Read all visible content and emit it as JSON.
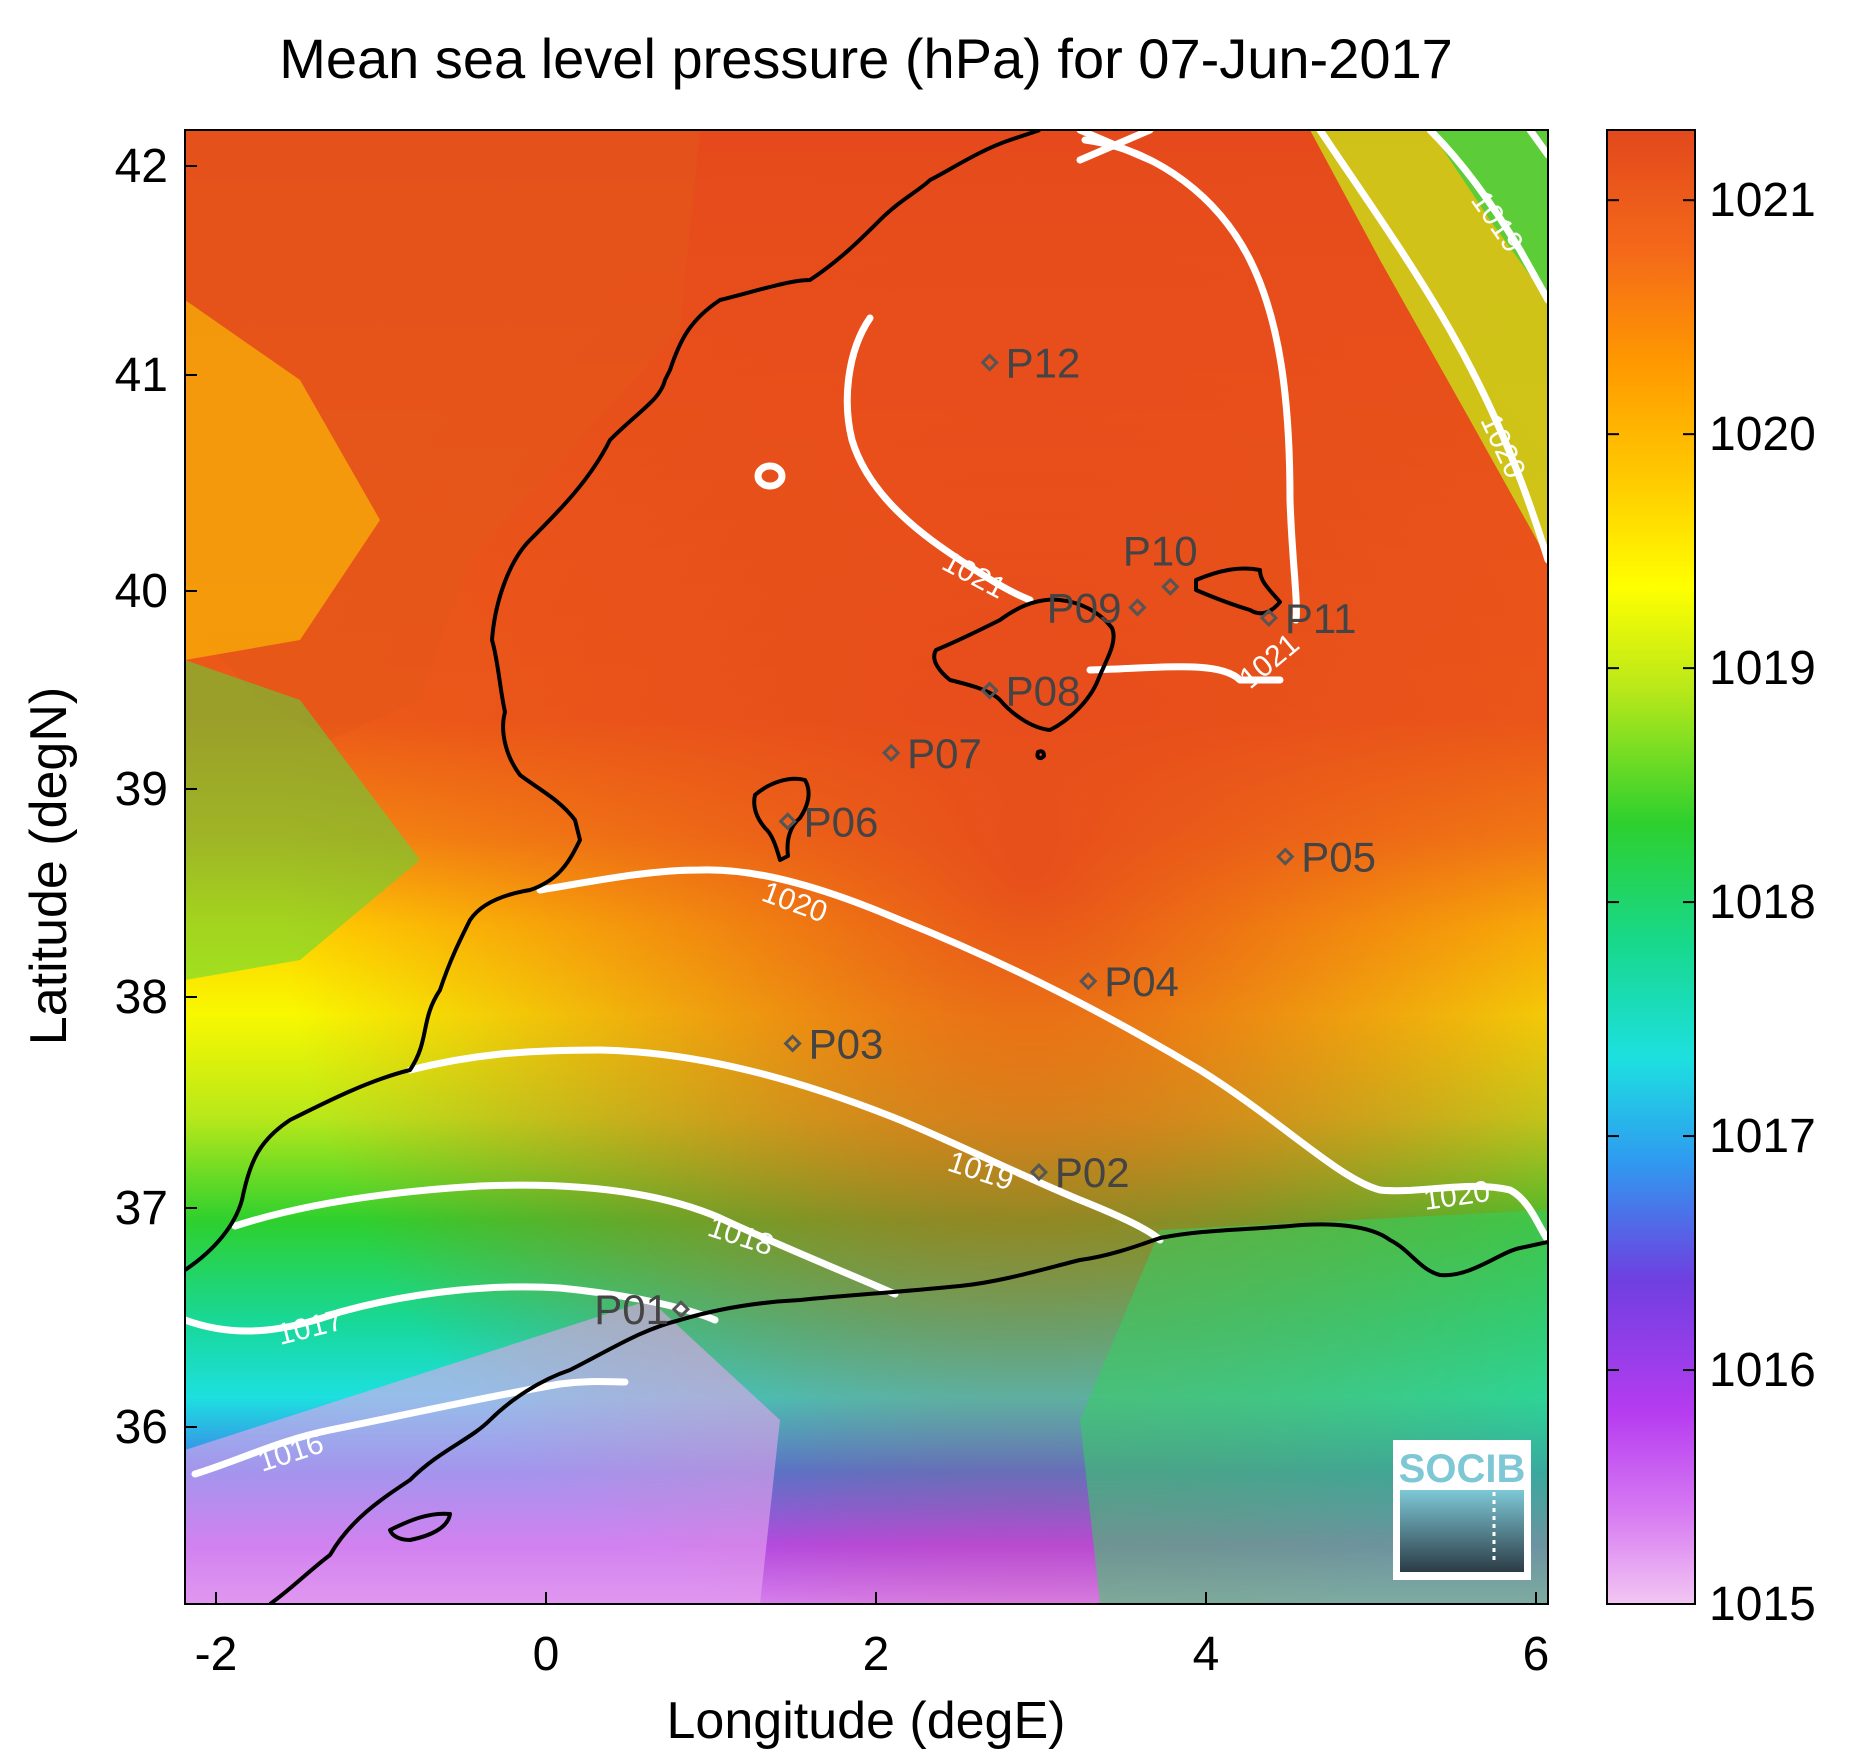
{
  "chart_data": {
    "type": "heatmap",
    "title": "Mean sea level pressure (hPa) for 07-Jun-2017",
    "xlabel": "Longitude (degE)",
    "ylabel": "Latitude (degN)",
    "xlim": [
      -2.2,
      6.1
    ],
    "ylim": [
      35.1,
      42.2
    ],
    "x_ticks": [
      "-2",
      "0",
      "2",
      "4",
      "6"
    ],
    "y_ticks": [
      "36",
      "37",
      "38",
      "39",
      "40",
      "41",
      "42"
    ],
    "colorbar": {
      "range": [
        1015,
        1021.3
      ],
      "ticks": [
        "1015",
        "1016",
        "1017",
        "1018",
        "1019",
        "1020",
        "1021"
      ],
      "colors": [
        "#f2c6f2",
        "#b63cf0",
        "#6f3fe0",
        "#2f9af0",
        "#1de0e0",
        "#18d88a",
        "#2ed02e",
        "#b8e81a",
        "#ffff00",
        "#ffcc00",
        "#ff9a00",
        "#f4681a",
        "#e2481c"
      ]
    },
    "contours": [
      {
        "level": "1016",
        "label": "1016"
      },
      {
        "level": "1017",
        "label": "1017"
      },
      {
        "level": "1018",
        "label": "1018"
      },
      {
        "level": "1019",
        "label": "1019"
      },
      {
        "level": "1020",
        "label": "1020"
      },
      {
        "level": "1021",
        "label": "1021"
      }
    ],
    "stations": [
      {
        "name": "P01",
        "lon": 0.82,
        "lat": 36.52
      },
      {
        "name": "P02",
        "lon": 3.0,
        "lat": 37.18
      },
      {
        "name": "P03",
        "lon": 1.5,
        "lat": 37.8
      },
      {
        "name": "P04",
        "lon": 3.3,
        "lat": 38.1
      },
      {
        "name": "P05",
        "lon": 4.5,
        "lat": 38.7
      },
      {
        "name": "P06",
        "lon": 1.47,
        "lat": 38.87
      },
      {
        "name": "P07",
        "lon": 2.1,
        "lat": 39.2
      },
      {
        "name": "P08",
        "lon": 2.7,
        "lat": 39.5
      },
      {
        "name": "P09",
        "lon": 3.6,
        "lat": 39.9
      },
      {
        "name": "P10",
        "lon": 3.8,
        "lat": 40.0
      },
      {
        "name": "P11",
        "lon": 4.4,
        "lat": 39.85
      },
      {
        "name": "P12",
        "lon": 2.7,
        "lat": 41.08
      }
    ]
  },
  "logo": {
    "text": "SOCIB"
  }
}
